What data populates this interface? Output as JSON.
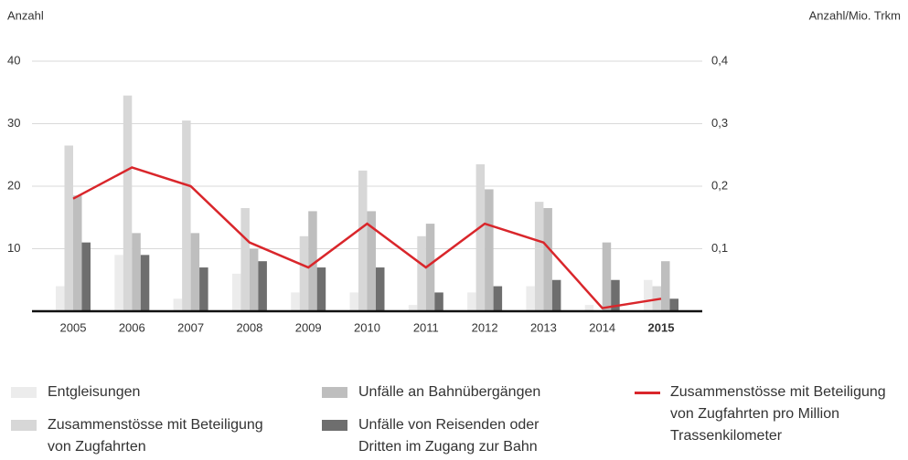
{
  "chart_data": {
    "type": "bar",
    "ylabel": "Anzahl",
    "y2label": "Anzahl/Mio. Trkm",
    "categories": [
      "2005",
      "2006",
      "2007",
      "2008",
      "2009",
      "2010",
      "2011",
      "2012",
      "2013",
      "2014",
      "2015"
    ],
    "highlight_index": 10,
    "ylim": [
      0,
      40
    ],
    "yticks": [
      10,
      20,
      30,
      40
    ],
    "y2lim": [
      0,
      0.4
    ],
    "y2ticks": [
      {
        "value": 0.1,
        "label": "0,1"
      },
      {
        "value": 0.2,
        "label": "0,2"
      },
      {
        "value": 0.3,
        "label": "0,3"
      },
      {
        "value": 0.4,
        "label": "0,4"
      }
    ],
    "grid": true,
    "series": [
      {
        "name": "Entgleisungen",
        "color": "#ececec",
        "values": [
          4,
          9,
          2,
          6,
          3,
          3,
          1,
          3,
          4,
          1,
          5
        ]
      },
      {
        "name": "Zusammenstösse mit Beteiligung von Zugfahrten",
        "color": "#d7d7d7",
        "values": [
          26.5,
          34.5,
          30.5,
          16.5,
          12,
          22.5,
          12,
          23.5,
          17.5,
          0,
          4
        ]
      },
      {
        "name": "Unfälle an Bahnübergängen",
        "color": "#bebebe",
        "values": [
          18.5,
          12.5,
          12.5,
          10,
          16,
          16,
          14,
          19.5,
          16.5,
          11,
          8
        ]
      },
      {
        "name": "Unfälle von Reisenden oder Dritten im Zugang zur Bahn",
        "color": "#6e6e6e",
        "values": [
          11,
          9,
          7,
          8,
          7,
          7,
          3,
          4,
          5,
          5,
          2
        ]
      },
      {
        "name": "Zusammenstösse mit Beteiligung von Zugfahrten pro Million Trassenkilometer",
        "color": "#d9262b",
        "type": "line",
        "axis": "y2",
        "values": [
          0.18,
          0.23,
          0.2,
          0.11,
          0.07,
          0.14,
          0.07,
          0.14,
          0.11,
          0.005,
          0.02
        ]
      }
    ]
  }
}
